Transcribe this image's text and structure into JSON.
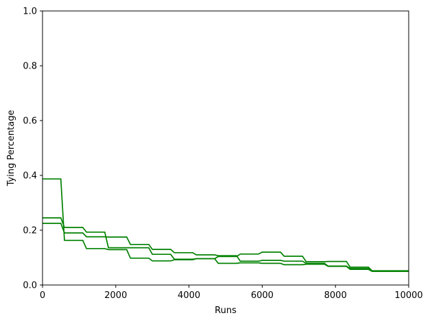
{
  "chart_data": {
    "type": "line",
    "title": "",
    "xlabel": "Runs",
    "ylabel": "Tying Percentage",
    "xlim": [
      0,
      10000
    ],
    "ylim": [
      0,
      1.0
    ],
    "x_ticks": [
      0,
      2000,
      4000,
      6000,
      8000,
      10000
    ],
    "x_tick_labels": [
      "0",
      "2000",
      "4000",
      "6000",
      "8000",
      "10000"
    ],
    "y_ticks": [
      0.0,
      0.2,
      0.4,
      0.6,
      0.8,
      1.0
    ],
    "y_tick_labels": [
      "0.0",
      "0.2",
      "0.4",
      "0.6",
      "0.8",
      "1.0"
    ],
    "grid": false,
    "legend": "none",
    "line_color": "#008000",
    "series": [
      {
        "x": [
          0,
          500,
          600,
          1100,
          1200,
          1700,
          1800,
          2300,
          2400,
          2900,
          3000,
          3500,
          3600,
          4100,
          4200,
          4700,
          4800,
          5300,
          5400,
          5900,
          6000,
          6500,
          6600,
          7100,
          7200,
          7700,
          7800,
          8300,
          8400,
          8900,
          9000,
          10000
        ],
        "y": [
          0.387,
          0.387,
          0.163,
          0.163,
          0.133,
          0.133,
          0.129,
          0.129,
          0.098,
          0.098,
          0.088,
          0.088,
          0.092,
          0.092,
          0.096,
          0.096,
          0.079,
          0.079,
          0.081,
          0.081,
          0.079,
          0.079,
          0.074,
          0.074,
          0.076,
          0.076,
          0.068,
          0.068,
          0.057,
          0.057,
          0.05,
          0.05
        ]
      },
      {
        "x": [
          0,
          500,
          600,
          1100,
          1200,
          1700,
          1800,
          2300,
          2400,
          2900,
          3000,
          3500,
          3600,
          4100,
          4200,
          4700,
          4800,
          5300,
          5400,
          5900,
          6000,
          6500,
          6600,
          7100,
          7200,
          7700,
          7800,
          8300,
          8400,
          8900,
          9000,
          10000
        ],
        "y": [
          0.245,
          0.245,
          0.21,
          0.21,
          0.193,
          0.193,
          0.136,
          0.136,
          0.136,
          0.136,
          0.112,
          0.112,
          0.094,
          0.094,
          0.096,
          0.096,
          0.104,
          0.104,
          0.113,
          0.113,
          0.12,
          0.12,
          0.105,
          0.105,
          0.085,
          0.085,
          0.086,
          0.086,
          0.065,
          0.065,
          0.052,
          0.052
        ]
      },
      {
        "x": [
          0,
          500,
          600,
          1100,
          1200,
          1700,
          1800,
          2300,
          2400,
          2900,
          3000,
          3500,
          3600,
          4100,
          4200,
          4700,
          4800,
          5300,
          5400,
          5900,
          6000,
          6500,
          6600,
          7100,
          7200,
          7700,
          7800,
          8300,
          8400,
          8900,
          9000,
          10000
        ],
        "y": [
          0.225,
          0.225,
          0.19,
          0.19,
          0.176,
          0.176,
          0.175,
          0.175,
          0.148,
          0.148,
          0.13,
          0.13,
          0.118,
          0.118,
          0.11,
          0.11,
          0.107,
          0.107,
          0.087,
          0.087,
          0.09,
          0.09,
          0.087,
          0.087,
          0.079,
          0.079,
          0.069,
          0.069,
          0.06,
          0.06,
          0.05,
          0.05
        ]
      }
    ]
  }
}
